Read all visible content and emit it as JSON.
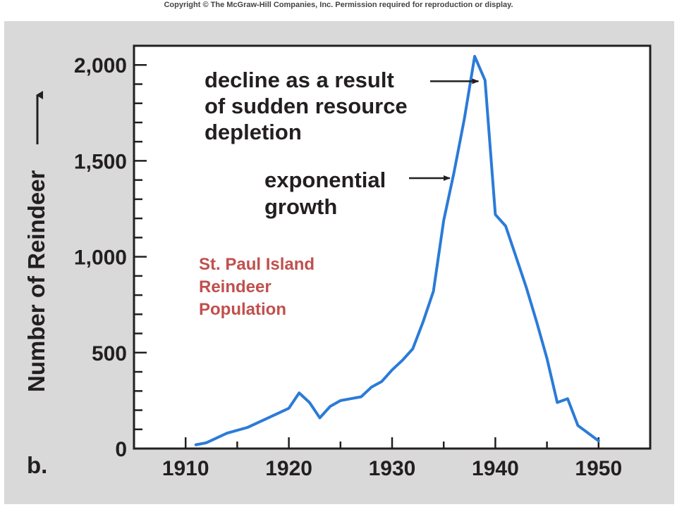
{
  "copyright": "Copyright © The McGraw-Hill Companies, Inc. Permission required for reproduction or display.",
  "panel_label": "b.",
  "chart_data": {
    "type": "line",
    "ylabel": "Number of Reindeer",
    "xlim": [
      1905,
      1955
    ],
    "ylim": [
      0,
      2100
    ],
    "x_ticks": [
      1910,
      1920,
      1930,
      1940,
      1950
    ],
    "x_tick_labels": [
      "1910",
      "1920",
      "1930",
      "1940",
      "1950"
    ],
    "y_ticks": [
      0,
      500,
      1000,
      1500,
      2000
    ],
    "y_tick_labels": [
      "0",
      "500",
      "1,000",
      "1,500",
      "2,000"
    ],
    "grid": false,
    "line_color": "#2b7bd8",
    "series": [
      {
        "x": [
          1911,
          1912,
          1914,
          1916,
          1918,
          1920,
          1921,
          1922,
          1923,
          1924,
          1925,
          1926,
          1927,
          1928,
          1929,
          1930,
          1931,
          1932,
          1933,
          1934,
          1935,
          1936,
          1937,
          1938,
          1939,
          1940,
          1941,
          1942,
          1943,
          1944,
          1945,
          1946,
          1947,
          1948,
          1949,
          1950
        ],
        "y": [
          20,
          30,
          80,
          110,
          160,
          210,
          290,
          240,
          160,
          220,
          250,
          260,
          270,
          320,
          350,
          410,
          460,
          520,
          660,
          820,
          1190,
          1440,
          1720,
          2045,
          1920,
          1220,
          1160,
          1000,
          840,
          660,
          470,
          240,
          260,
          120,
          80,
          40
        ]
      }
    ],
    "annotations": [
      {
        "lines": [
          "decline as a result",
          "of sudden resource",
          "depletion"
        ],
        "x": 1938.5,
        "y": 1915
      },
      {
        "lines": [
          "exponential",
          "growth"
        ],
        "x": 1936,
        "y": 1410
      }
    ],
    "label": {
      "lines": [
        "St. Paul Island",
        "Reindeer",
        "Population"
      ],
      "color": "#c0504d"
    }
  }
}
